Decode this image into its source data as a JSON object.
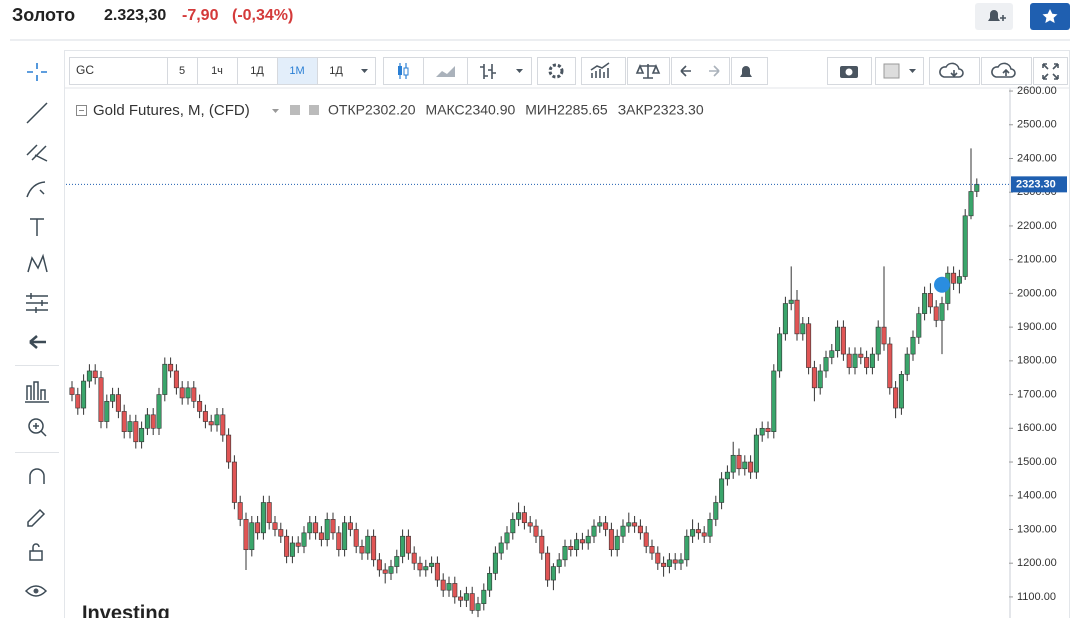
{
  "header": {
    "name": "Золото",
    "price": "2.323,30",
    "change": "-7,90",
    "change_percent": "(-0,34%)"
  },
  "toolbar": {
    "symbol": "GC",
    "intervals": [
      "5",
      "1ч",
      "1Д",
      "1М",
      "1Д"
    ]
  },
  "legend": {
    "name": "Gold Futures, M, (CFD)",
    "items": [
      {
        "label": "ОТКР",
        "value": "2302.20"
      },
      {
        "label": "МАКС",
        "value": "2340.90"
      },
      {
        "label": "МИН",
        "value": "2285.65"
      },
      {
        "label": "ЗАКР",
        "value": "2323.30"
      }
    ]
  },
  "watermark": "Investing",
  "chart_data": {
    "type": "candlestick",
    "up_color": "#3aa56b",
    "down_color": "#e05555",
    "ylim": [
      1037.5,
      2609
    ],
    "yticks": [
      {
        "value": 1100,
        "label": "1100.00"
      },
      {
        "value": 1200,
        "label": "1200.00"
      },
      {
        "value": 1300,
        "label": "1300.00"
      },
      {
        "value": 1400,
        "label": "1400.00"
      },
      {
        "value": 1500,
        "label": "1500.00"
      },
      {
        "value": 1600,
        "label": "1600.00"
      },
      {
        "value": 1700,
        "label": "1700.00"
      },
      {
        "value": 1800,
        "label": "1800.00"
      },
      {
        "value": 1900,
        "label": "1900.00"
      },
      {
        "value": 2000,
        "label": "2000.00"
      },
      {
        "value": 2100,
        "label": "2100.00"
      },
      {
        "value": 2200,
        "label": "2200.00"
      },
      {
        "value": 2300,
        "label": "2300.00"
      },
      {
        "value": 2400,
        "label": "2400.00"
      },
      {
        "value": 2500,
        "label": "2500.00"
      },
      {
        "value": 2600,
        "label": "2600.00"
      }
    ],
    "last_price": {
      "value": 2323.3,
      "label": "2323.30"
    },
    "open": [
      1720,
      1700,
      1660,
      1740,
      1770,
      1750,
      1620,
      1680,
      1700,
      1650,
      1590,
      1620,
      1560,
      1600,
      1640,
      1600,
      1700,
      1790,
      1770,
      1720,
      1690,
      1720,
      1680,
      1650,
      1620,
      1610,
      1640,
      1580,
      1500,
      1380,
      1330,
      1240,
      1320,
      1290,
      1380,
      1320,
      1300,
      1280,
      1220,
      1260,
      1250,
      1290,
      1320,
      1290,
      1270,
      1330,
      1290,
      1240,
      1320,
      1300,
      1250,
      1230,
      1280,
      1210,
      1180,
      1170,
      1190,
      1220,
      1280,
      1230,
      1200,
      1180,
      1190,
      1200,
      1150,
      1120,
      1140,
      1100,
      1090,
      1110,
      1060,
      1080,
      1120,
      1170,
      1230,
      1260,
      1290,
      1330,
      1350,
      1320,
      1310,
      1280,
      1230,
      1150,
      1190,
      1210,
      1250,
      1240,
      1270,
      1260,
      1280,
      1310,
      1320,
      1300,
      1240,
      1280,
      1310,
      1320,
      1310,
      1290,
      1250,
      1230,
      1200,
      1190,
      1210,
      1200,
      1210,
      1280,
      1300,
      1290,
      1280,
      1330,
      1380,
      1450,
      1470,
      1520,
      1480,
      1500,
      1470,
      1580,
      1600,
      1590,
      1770,
      1880,
      1970,
      1980,
      1880,
      1910,
      1780,
      1720,
      1770,
      1810,
      1830,
      1900,
      1820,
      1780,
      1820,
      1810,
      1780,
      1820,
      1900,
      1850,
      1720,
      1660,
      1760,
      1820,
      1870,
      1940,
      2000,
      1960,
      1920,
      1970,
      2060,
      2030,
      2050,
      2230,
      2302.2
    ],
    "high": [
      1740,
      1720,
      1760,
      1790,
      1790,
      1770,
      1700,
      1720,
      1720,
      1670,
      1640,
      1640,
      1620,
      1660,
      1660,
      1720,
      1810,
      1810,
      1790,
      1740,
      1740,
      1740,
      1700,
      1670,
      1640,
      1660,
      1660,
      1600,
      1520,
      1400,
      1350,
      1340,
      1340,
      1400,
      1400,
      1340,
      1320,
      1300,
      1280,
      1280,
      1310,
      1340,
      1340,
      1310,
      1350,
      1350,
      1310,
      1340,
      1340,
      1320,
      1270,
      1300,
      1300,
      1230,
      1200,
      1210,
      1240,
      1300,
      1300,
      1250,
      1220,
      1210,
      1220,
      1220,
      1170,
      1160,
      1160,
      1120,
      1130,
      1130,
      1100,
      1140,
      1190,
      1250,
      1280,
      1310,
      1350,
      1380,
      1370,
      1340,
      1330,
      1300,
      1250,
      1200,
      1230,
      1270,
      1270,
      1290,
      1290,
      1300,
      1330,
      1340,
      1340,
      1320,
      1300,
      1330,
      1350,
      1340,
      1330,
      1310,
      1270,
      1250,
      1220,
      1230,
      1230,
      1230,
      1300,
      1330,
      1320,
      1310,
      1350,
      1400,
      1470,
      1490,
      1560,
      1540,
      1520,
      1520,
      1600,
      1620,
      1620,
      1790,
      1900,
      1990,
      2080,
      2010,
      1930,
      1930,
      1800,
      1790,
      1830,
      1850,
      1920,
      1920,
      1840,
      1840,
      1840,
      1830,
      1840,
      1920,
      2080,
      1870,
      1740,
      1770,
      1840,
      1890,
      1960,
      2020,
      2030,
      1980,
      1990,
      2080,
      2080,
      2070,
      2250,
      2430,
      2340.9
    ],
    "low": [
      1680,
      1640,
      1640,
      1720,
      1730,
      1600,
      1600,
      1660,
      1630,
      1570,
      1570,
      1540,
      1540,
      1580,
      1580,
      1580,
      1680,
      1750,
      1700,
      1670,
      1670,
      1660,
      1630,
      1600,
      1590,
      1590,
      1560,
      1480,
      1360,
      1310,
      1180,
      1220,
      1270,
      1270,
      1300,
      1280,
      1260,
      1200,
      1200,
      1230,
      1230,
      1270,
      1270,
      1250,
      1250,
      1270,
      1220,
      1220,
      1280,
      1230,
      1210,
      1210,
      1190,
      1160,
      1140,
      1150,
      1170,
      1200,
      1210,
      1180,
      1160,
      1160,
      1170,
      1130,
      1100,
      1100,
      1080,
      1070,
      1070,
      1050,
      1040,
      1060,
      1100,
      1150,
      1210,
      1240,
      1270,
      1310,
      1300,
      1290,
      1260,
      1210,
      1130,
      1120,
      1170,
      1190,
      1220,
      1220,
      1240,
      1240,
      1260,
      1290,
      1280,
      1220,
      1220,
      1260,
      1290,
      1290,
      1270,
      1230,
      1210,
      1180,
      1160,
      1170,
      1180,
      1180,
      1190,
      1260,
      1270,
      1260,
      1260,
      1310,
      1360,
      1430,
      1450,
      1460,
      1460,
      1450,
      1450,
      1560,
      1570,
      1570,
      1750,
      1860,
      1950,
      1860,
      1860,
      1760,
      1680,
      1700,
      1750,
      1790,
      1810,
      1800,
      1760,
      1760,
      1790,
      1760,
      1760,
      1800,
      1830,
      1700,
      1630,
      1640,
      1740,
      1800,
      1850,
      1920,
      1940,
      1900,
      1820,
      1950,
      2010,
      2000,
      2040,
      2220,
      2285.65
    ],
    "close": [
      1700,
      1660,
      1740,
      1770,
      1750,
      1620,
      1680,
      1700,
      1650,
      1590,
      1620,
      1560,
      1600,
      1640,
      1600,
      1700,
      1790,
      1770,
      1720,
      1690,
      1720,
      1680,
      1650,
      1620,
      1610,
      1640,
      1580,
      1500,
      1380,
      1330,
      1240,
      1320,
      1290,
      1380,
      1320,
      1300,
      1280,
      1220,
      1260,
      1250,
      1290,
      1320,
      1290,
      1270,
      1330,
      1290,
      1240,
      1320,
      1300,
      1250,
      1230,
      1280,
      1210,
      1180,
      1170,
      1190,
      1220,
      1280,
      1230,
      1200,
      1180,
      1190,
      1200,
      1150,
      1120,
      1140,
      1100,
      1090,
      1110,
      1060,
      1080,
      1120,
      1170,
      1230,
      1260,
      1290,
      1330,
      1350,
      1320,
      1310,
      1280,
      1230,
      1150,
      1190,
      1210,
      1250,
      1240,
      1270,
      1260,
      1280,
      1310,
      1320,
      1300,
      1240,
      1280,
      1310,
      1320,
      1310,
      1290,
      1250,
      1230,
      1200,
      1190,
      1210,
      1200,
      1210,
      1280,
      1300,
      1290,
      1280,
      1330,
      1380,
      1450,
      1470,
      1520,
      1480,
      1500,
      1470,
      1580,
      1600,
      1590,
      1770,
      1880,
      1970,
      1980,
      1880,
      1910,
      1780,
      1720,
      1770,
      1810,
      1830,
      1900,
      1820,
      1780,
      1820,
      1810,
      1780,
      1820,
      1900,
      1850,
      1720,
      1660,
      1760,
      1820,
      1870,
      1940,
      2000,
      1960,
      1920,
      1970,
      2060,
      2030,
      2050,
      2230,
      2302.2,
      2323.3
    ]
  }
}
